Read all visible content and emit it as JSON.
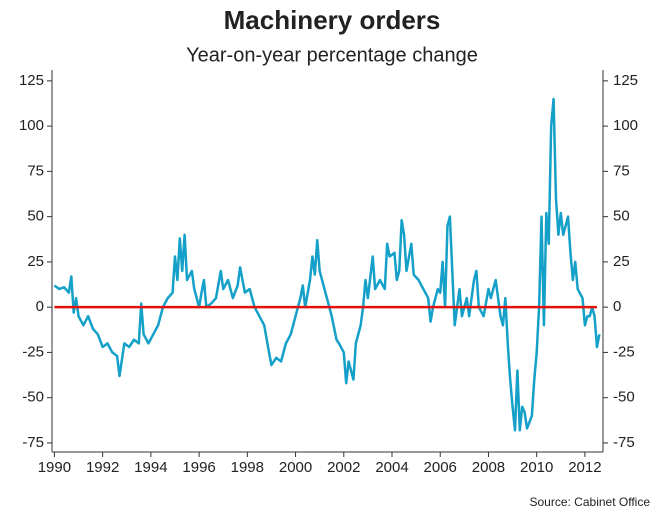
{
  "chart_data": {
    "type": "line",
    "title": "Machinery orders",
    "subtitle": "Year-on-year percentage change",
    "source": "Source: Cabinet Office",
    "x": [
      1990.0,
      1990.2,
      1990.4,
      1990.6,
      1990.7,
      1990.8,
      1990.9,
      1991.0,
      1991.2,
      1991.4,
      1991.6,
      1991.8,
      1992.0,
      1992.2,
      1992.4,
      1992.6,
      1992.7,
      1992.9,
      1993.1,
      1993.3,
      1993.5,
      1993.6,
      1993.7,
      1993.9,
      1994.1,
      1994.3,
      1994.5,
      1994.7,
      1994.9,
      1995.0,
      1995.1,
      1995.2,
      1995.3,
      1995.4,
      1995.5,
      1995.7,
      1995.8,
      1995.9,
      1996.0,
      1996.1,
      1996.2,
      1996.3,
      1996.5,
      1996.7,
      1996.9,
      1997.0,
      1997.2,
      1997.4,
      1997.6,
      1997.7,
      1997.9,
      1998.1,
      1998.3,
      1998.5,
      1998.7,
      1998.9,
      1999.0,
      1999.2,
      1999.4,
      1999.6,
      1999.8,
      2000.0,
      2000.2,
      2000.3,
      2000.4,
      2000.6,
      2000.7,
      2000.8,
      2000.9,
      2001.0,
      2001.1,
      2001.3,
      2001.5,
      2001.7,
      2001.8,
      2002.0,
      2002.1,
      2002.2,
      2002.4,
      2002.5,
      2002.7,
      2002.8,
      2002.9,
      2003.0,
      2003.2,
      2003.3,
      2003.5,
      2003.7,
      2003.8,
      2003.9,
      2004.1,
      2004.2,
      2004.3,
      2004.4,
      2004.5,
      2004.6,
      2004.8,
      2004.9,
      2005.1,
      2005.3,
      2005.5,
      2005.6,
      2005.7,
      2005.9,
      2006.0,
      2006.1,
      2006.2,
      2006.3,
      2006.4,
      2006.5,
      2006.6,
      2006.8,
      2006.9,
      2007.1,
      2007.2,
      2007.4,
      2007.5,
      2007.6,
      2007.8,
      2008.0,
      2008.1,
      2008.3,
      2008.5,
      2008.6,
      2008.7,
      2008.8,
      2008.9,
      2009.0,
      2009.1,
      2009.2,
      2009.3,
      2009.4,
      2009.5,
      2009.6,
      2009.8,
      2009.9,
      2010.0,
      2010.1,
      2010.2,
      2010.3,
      2010.4,
      2010.5,
      2010.6,
      2010.7,
      2010.8,
      2010.9,
      2011.0,
      2011.1,
      2011.3,
      2011.4,
      2011.5,
      2011.6,
      2011.7,
      2011.9,
      2012.0,
      2012.1,
      2012.2,
      2012.3,
      2012.4,
      2012.5,
      2012.6
    ],
    "series": [
      {
        "color": "#14a0c8",
        "values": [
          12,
          10,
          11,
          8,
          17,
          -3,
          5,
          -5,
          -10,
          -5,
          -12,
          -15,
          -22,
          -20,
          -25,
          -27,
          -38,
          -20,
          -22,
          -18,
          -20,
          2,
          -15,
          -20,
          -15,
          -10,
          0,
          5,
          8,
          28,
          15,
          38,
          20,
          40,
          15,
          20,
          10,
          5,
          0,
          8,
          15,
          0,
          2,
          5,
          20,
          10,
          15,
          5,
          12,
          22,
          8,
          10,
          0,
          -5,
          -10,
          -25,
          -32,
          -28,
          -30,
          -20,
          -15,
          -5,
          5,
          12,
          0,
          15,
          28,
          18,
          37,
          20,
          15,
          5,
          -5,
          -18,
          -20,
          -25,
          -42,
          -30,
          -40,
          -20,
          -10,
          0,
          15,
          5,
          28,
          10,
          15,
          10,
          35,
          28,
          30,
          15,
          20,
          48,
          40,
          20,
          35,
          18,
          15,
          10,
          5,
          -8,
          0,
          10,
          8,
          25,
          0,
          45,
          50,
          20,
          -10,
          10,
          -5,
          5,
          -5,
          15,
          20,
          0,
          -5,
          10,
          5,
          15,
          -5,
          -10,
          5,
          -20,
          -40,
          -55,
          -68,
          -35,
          -68,
          -55,
          -58,
          -67,
          -60,
          -40,
          -25,
          0,
          50,
          -10,
          52,
          35,
          100,
          115,
          60,
          40,
          52,
          40,
          50,
          30,
          15,
          25,
          10,
          5,
          -10,
          -5,
          -5,
          0,
          -5,
          -22,
          -15
        ]
      }
    ],
    "reference_line": {
      "value": 0,
      "color": "#e3120b",
      "x": [
        1990,
        2012.5
      ]
    },
    "xlim": [
      1989.9,
      2012.75
    ],
    "ylim": [
      -80,
      131
    ],
    "xticks": [
      1990,
      1992,
      1994,
      1996,
      1998,
      2000,
      2002,
      2004,
      2006,
      2008,
      2010,
      2012
    ],
    "yticks": [
      -75,
      -50,
      -25,
      0,
      25,
      50,
      75,
      100,
      125
    ]
  }
}
